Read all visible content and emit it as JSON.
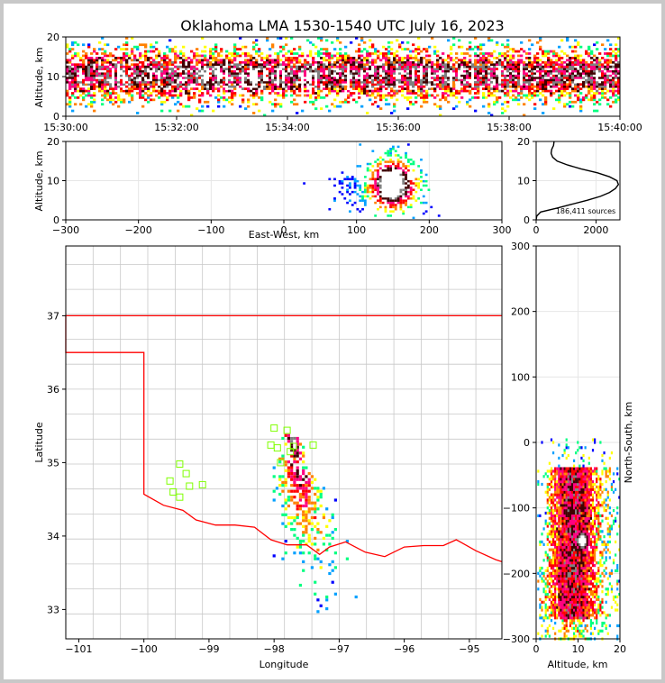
{
  "figure": {
    "title": "Oklahoma LMA 1530-1540 UTC July 16, 2023"
  },
  "chart_data": [
    {
      "type": "heatmap",
      "name": "altitude-time",
      "ylabel": "Altitude, km",
      "xlim_minutes": [
        0,
        10
      ],
      "ylim": [
        0,
        20
      ],
      "yticks": [
        "0",
        "10",
        "20"
      ],
      "xticks": [
        "15:30:00",
        "15:32:00",
        "15:34:00",
        "15:36:00",
        "15:38:00",
        "15:40:00"
      ]
    },
    {
      "type": "heatmap",
      "name": "east-west-altitude",
      "xlabel": "East-West, km",
      "ylabel": "Altitude, km",
      "xlim": [
        -300,
        300
      ],
      "ylim": [
        0,
        20
      ],
      "xticks": [
        "−300",
        "−200",
        "−100",
        "0",
        "100",
        "200",
        "300"
      ],
      "yticks": [
        "0",
        "10",
        "20"
      ],
      "cores": [
        {
          "x": 150,
          "alt": 8
        },
        {
          "x": 140,
          "alt": 10
        }
      ]
    },
    {
      "type": "line",
      "name": "altitude-histogram",
      "xlim": [
        0,
        2800
      ],
      "ylim": [
        0,
        20
      ],
      "xticks": [
        "0",
        "2000"
      ],
      "yticks": [
        "0",
        "10",
        "20"
      ],
      "annotation": "186,411 sources",
      "points": [
        [
          0,
          0
        ],
        [
          20,
          1
        ],
        [
          150,
          2
        ],
        [
          700,
          3
        ],
        [
          1200,
          4
        ],
        [
          1700,
          5
        ],
        [
          2150,
          6
        ],
        [
          2450,
          7
        ],
        [
          2650,
          8
        ],
        [
          2750,
          9
        ],
        [
          2700,
          10
        ],
        [
          2450,
          11
        ],
        [
          2050,
          12
        ],
        [
          1500,
          13
        ],
        [
          1050,
          14
        ],
        [
          700,
          15
        ],
        [
          550,
          16
        ],
        [
          500,
          17
        ],
        [
          520,
          18
        ],
        [
          580,
          19
        ],
        [
          600,
          20
        ]
      ]
    },
    {
      "type": "heatmap",
      "name": "plan-view",
      "xlabel": "Longitude",
      "ylabel": "Latitude",
      "xlim": [
        -101.2,
        -94.5
      ],
      "ylim": [
        32.6,
        37.95
      ],
      "xticks": [
        "−101",
        "−100",
        "−99",
        "−98",
        "−97",
        "−96",
        "−95"
      ],
      "yticks": [
        "33",
        "34",
        "35",
        "36",
        "37"
      ],
      "stations": [
        [
          -99.45,
          34.98
        ],
        [
          -99.35,
          34.85
        ],
        [
          -99.6,
          34.75
        ],
        [
          -99.3,
          34.68
        ],
        [
          -99.1,
          34.7
        ],
        [
          -99.55,
          34.6
        ],
        [
          -99.45,
          34.53
        ],
        [
          -98.0,
          35.47
        ],
        [
          -97.8,
          35.44
        ],
        [
          -98.05,
          35.24
        ],
        [
          -97.95,
          35.2
        ],
        [
          -97.7,
          35.22
        ],
        [
          -97.4,
          35.24
        ],
        [
          -97.9,
          35.0
        ],
        [
          -97.75,
          35.15
        ]
      ]
    },
    {
      "type": "heatmap",
      "name": "north-south-altitude",
      "xlabel": "Altitude, km",
      "ylabel": "North-South, km",
      "xlim": [
        0,
        20
      ],
      "ylim": [
        -300,
        300
      ],
      "xticks": [
        "0",
        "10",
        "20"
      ],
      "yticks": [
        "−300",
        "−200",
        "−100",
        "0",
        "100",
        "200",
        "300"
      ]
    }
  ],
  "colors": {
    "border": "#ff0000",
    "counties": "#c8c8c8",
    "stations": "#7fff00",
    "grid": "#e6e6e6",
    "density_scale": [
      "#0000ff",
      "#00a0ff",
      "#00ff80",
      "#ffff00",
      "#ff8000",
      "#ff0000",
      "#ff0080",
      "#400000",
      "#808080",
      "#ffffff"
    ]
  }
}
